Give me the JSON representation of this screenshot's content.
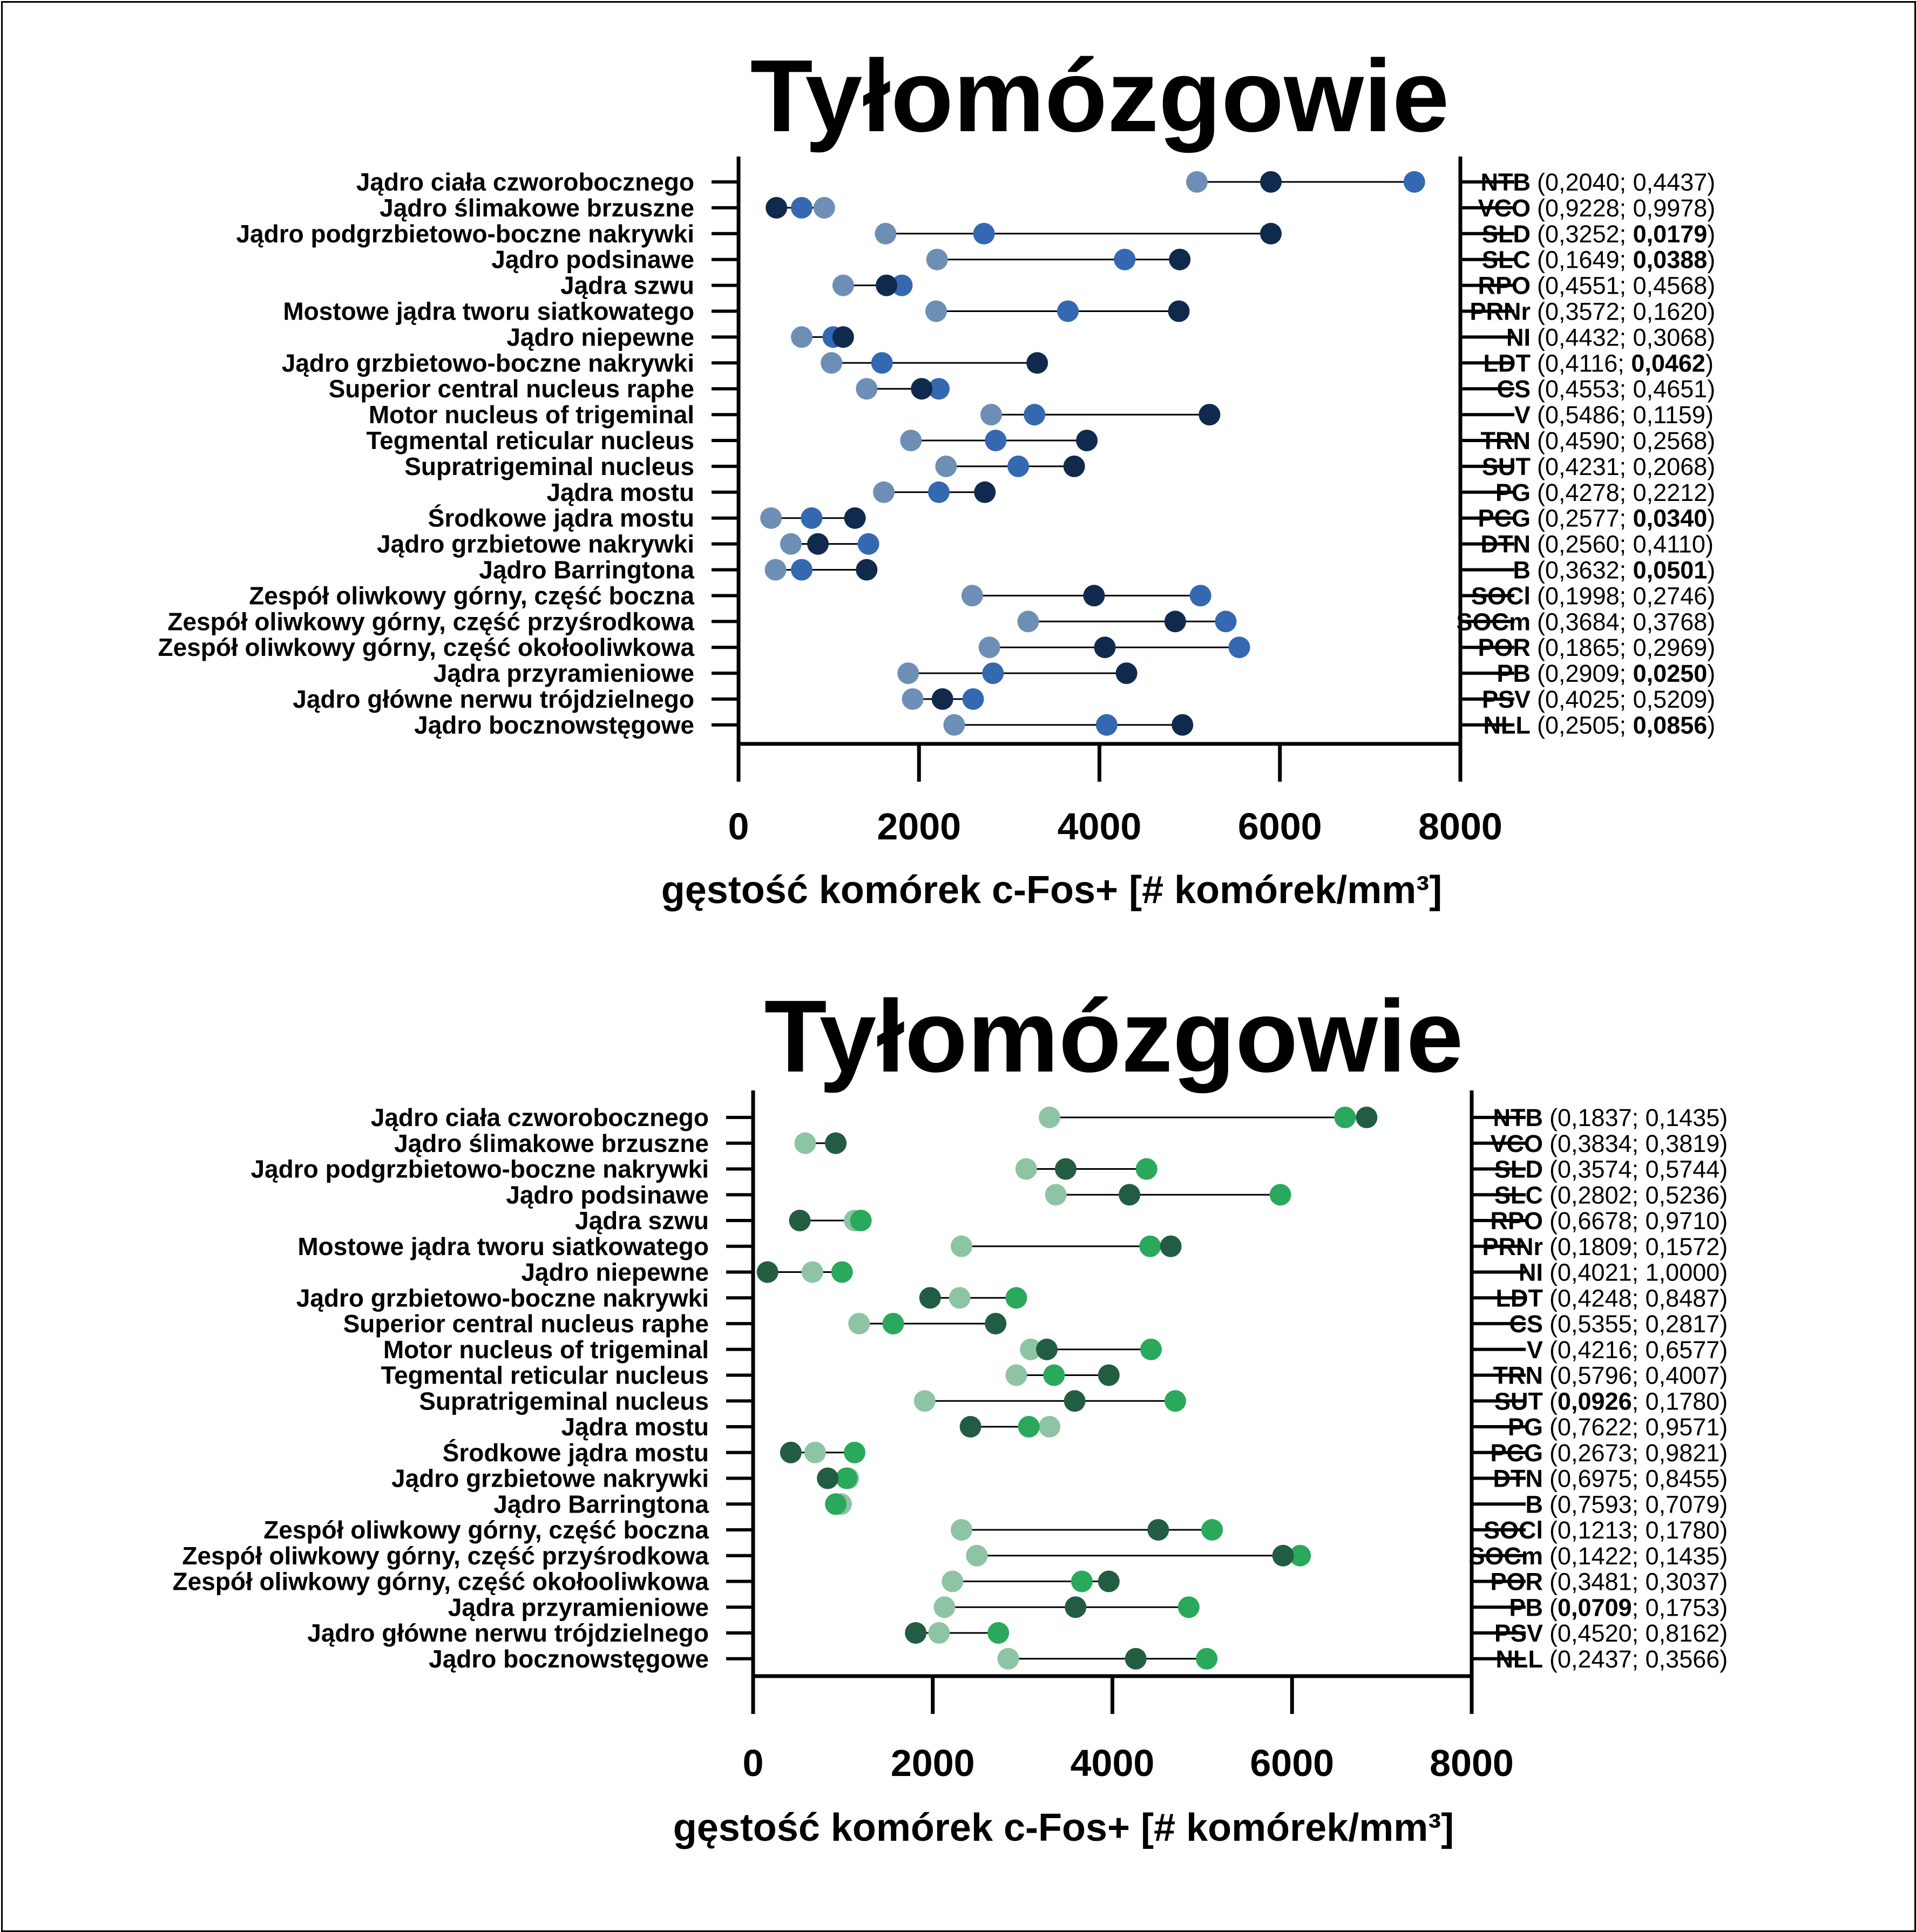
{
  "colors": {
    "blue_light": "#6e8fb5",
    "blue_mid": "#3468b1",
    "blue_dark": "#0f2a4d",
    "green_light": "#8dc4a4",
    "green_mid": "#2aa85c",
    "green_dark": "#225c43",
    "line": "#000000"
  },
  "chart_data": [
    {
      "type": "dot-range",
      "title": "Tyłomózgowie",
      "xlabel": "gęstość  komórek c-Fos+ [# komórek/mm³]",
      "xlim": [
        0,
        8000
      ],
      "xticks": [
        "0",
        "2000",
        "4000",
        "6000",
        "8000"
      ],
      "color_scheme": "blue",
      "categories": [
        "Jądro ciała czworobocznego",
        "Jądro ślimakowe brzuszne",
        "Jądro podgrzbietowo-boczne nakrywki",
        "Jądro podsinawe",
        "Jądra szwu",
        "Mostowe jądra tworu siatkowatego",
        "Jądro niepewne",
        "Jądro grzbietowo-boczne nakrywki",
        "Superior central nucleus raphe",
        "Motor nucleus of trigeminal",
        "Tegmental reticular nucleus",
        "Supratrigeminal nucleus",
        "Jądra mostu",
        "Środkowe jądra mostu",
        "Jądro grzbietowe nakrywki",
        "Jądro Barringtona",
        "Zespół oliwkowy górny, część boczna",
        "Zespół oliwkowy górny, część przyśrodkowa",
        "Zespół oliwkowy górny, część okołooliwkowa",
        "Jądra przyramieniowe",
        "Jądro główne nerwu trójdzielnego",
        "Jądro bocznowstęgowe"
      ],
      "abbreviations": [
        "NTB",
        "VCO",
        "SLD",
        "SLC",
        "RPO",
        "PRNr",
        "NI",
        "LDT",
        "CS",
        "V",
        "TRN",
        "SUT",
        "PG",
        "PCG",
        "DTN",
        "B",
        "SOCl",
        "SOCm",
        "POR",
        "PB",
        "PSV",
        "NLL"
      ],
      "p_values": [
        [
          "0,2040",
          "0,4437"
        ],
        [
          "0,9228",
          "0,9978"
        ],
        [
          "0,3252",
          "0,0179"
        ],
        [
          "0,1649",
          "0,0388"
        ],
        [
          "0,4551",
          "0,4568"
        ],
        [
          "0,3572",
          "0,1620"
        ],
        [
          "0,4432",
          "0,3068"
        ],
        [
          "0,4116",
          "0,0462"
        ],
        [
          "0,4553",
          "0,4651"
        ],
        [
          "0,5486",
          "0,1159"
        ],
        [
          "0,4590",
          "0,2568"
        ],
        [
          "0,4231",
          "0,2068"
        ],
        [
          "0,4278",
          "0,2212"
        ],
        [
          "0,2577",
          "0,0340"
        ],
        [
          "0,2560",
          "0,4110"
        ],
        [
          "0,3632",
          "0,0501"
        ],
        [
          "0,1998",
          "0,2746"
        ],
        [
          "0,3684",
          "0,3768"
        ],
        [
          "0,1865",
          "0,2969"
        ],
        [
          "0,2909",
          "0,0250"
        ],
        [
          "0,4025",
          "0,5209"
        ],
        [
          "0,2505",
          "0,0856"
        ]
      ],
      "p_bold": [
        [
          false,
          false
        ],
        [
          false,
          false
        ],
        [
          false,
          true
        ],
        [
          false,
          true
        ],
        [
          false,
          false
        ],
        [
          false,
          false
        ],
        [
          false,
          false
        ],
        [
          false,
          true
        ],
        [
          false,
          false
        ],
        [
          false,
          false
        ],
        [
          false,
          false
        ],
        [
          false,
          false
        ],
        [
          false,
          false
        ],
        [
          false,
          true
        ],
        [
          false,
          false
        ],
        [
          false,
          true
        ],
        [
          false,
          false
        ],
        [
          false,
          false
        ],
        [
          false,
          false
        ],
        [
          false,
          true
        ],
        [
          false,
          false
        ],
        [
          false,
          true
        ]
      ],
      "series": [
        {
          "shade": "light",
          "values": [
            5080,
            950,
            1630,
            2200,
            1160,
            2190,
            700,
            1030,
            1420,
            2800,
            1910,
            2300,
            1610,
            360,
            580,
            410,
            2590,
            3210,
            2780,
            1880,
            1930,
            2390
          ]
        },
        {
          "shade": "mid",
          "values": [
            7490,
            700,
            2720,
            4280,
            1810,
            3650,
            1050,
            1590,
            2220,
            3280,
            2850,
            3100,
            2220,
            810,
            1440,
            700,
            5120,
            5400,
            5550,
            2820,
            2600,
            4080
          ]
        },
        {
          "shade": "dark",
          "values": [
            5900,
            420,
            5900,
            4890,
            1640,
            4880,
            1160,
            3310,
            2030,
            5220,
            3860,
            3720,
            2730,
            1290,
            880,
            1420,
            3940,
            4840,
            4060,
            4300,
            2260,
            4920
          ]
        }
      ]
    },
    {
      "type": "dot-range",
      "title": "Tyłomózgowie",
      "xlabel": "gęstość  komórek c-Fos+ [# komórek/mm³]",
      "xlim": [
        0,
        8000
      ],
      "xticks": [
        "0",
        "2000",
        "4000",
        "6000",
        "8000"
      ],
      "color_scheme": "green",
      "categories": [
        "Jądro ciała czworobocznego",
        "Jądro ślimakowe brzuszne",
        "Jądro podgrzbietowo-boczne nakrywki",
        "Jądro podsinawe",
        "Jądra szwu",
        "Mostowe jądra tworu siatkowatego",
        "Jądro niepewne",
        "Jądro grzbietowo-boczne nakrywki",
        "Superior central nucleus raphe",
        "Motor nucleus of trigeminal",
        "Tegmental reticular nucleus",
        "Supratrigeminal nucleus",
        "Jądra mostu",
        "Środkowe jądra mostu",
        "Jądro grzbietowe nakrywki",
        "Jądro Barringtona",
        "Zespół oliwkowy górny, część boczna",
        "Zespół oliwkowy górny, część przyśrodkowa",
        "Zespół oliwkowy górny, część okołooliwkowa",
        "Jądra przyramieniowe",
        "Jądro główne nerwu trójdzielnego",
        "Jądro bocznowstęgowe"
      ],
      "abbreviations": [
        "NTB",
        "VCO",
        "SLD",
        "SLC",
        "RPO",
        "PRNr",
        "NI",
        "LDT",
        "CS",
        "V",
        "TRN",
        "SUT",
        "PG",
        "PCG",
        "DTN",
        "B",
        "SOCl",
        "SOCm",
        "POR",
        "PB",
        "PSV",
        "NLL"
      ],
      "p_values": [
        [
          "0,1837",
          "0,1435"
        ],
        [
          "0,3834",
          "0,3819"
        ],
        [
          "0,3574",
          "0,5744"
        ],
        [
          "0,2802",
          "0,5236"
        ],
        [
          "0,6678",
          "0,9710"
        ],
        [
          "0,1809",
          "0,1572"
        ],
        [
          "0,4021",
          "1,0000"
        ],
        [
          "0,4248",
          "0,8487"
        ],
        [
          "0,5355",
          "0,2817"
        ],
        [
          "0,4216",
          "0,6577"
        ],
        [
          "0,5796",
          "0,4007"
        ],
        [
          "0,0926",
          "0,1780"
        ],
        [
          "0,7622",
          "0,9571"
        ],
        [
          "0,2673",
          "0,9821"
        ],
        [
          "0,6975",
          "0,8455"
        ],
        [
          "0,7593",
          "0,7079"
        ],
        [
          "0,1213",
          "0,1780"
        ],
        [
          "0,1422",
          "0,1435"
        ],
        [
          "0,3481",
          "0,3037"
        ],
        [
          "0,0709",
          "0,1753"
        ],
        [
          "0,4520",
          "0,8162"
        ],
        [
          "0,2437",
          "0,3566"
        ]
      ],
      "p_bold": [
        [
          false,
          false
        ],
        [
          false,
          false
        ],
        [
          false,
          false
        ],
        [
          false,
          false
        ],
        [
          false,
          false
        ],
        [
          false,
          false
        ],
        [
          false,
          false
        ],
        [
          false,
          false
        ],
        [
          false,
          false
        ],
        [
          false,
          false
        ],
        [
          false,
          false
        ],
        [
          true,
          false
        ],
        [
          false,
          false
        ],
        [
          false,
          false
        ],
        [
          false,
          false
        ],
        [
          false,
          false
        ],
        [
          false,
          false
        ],
        [
          false,
          false
        ],
        [
          false,
          false
        ],
        [
          true,
          false
        ],
        [
          false,
          false
        ],
        [
          false,
          false
        ]
      ],
      "series": [
        {
          "shade": "light",
          "values": [
            3300,
            580,
            3040,
            3370,
            1130,
            2320,
            660,
            2300,
            1180,
            3090,
            2930,
            1910,
            3300,
            690,
            1060,
            980,
            2320,
            2490,
            2220,
            2130,
            2070,
            2840
          ]
        },
        {
          "shade": "mid",
          "values": [
            6590,
            920,
            4380,
            5870,
            1200,
            4420,
            990,
            2930,
            1560,
            4430,
            3350,
            4700,
            3070,
            1130,
            1040,
            920,
            5110,
            6090,
            3660,
            4850,
            2730,
            5050
          ]
        },
        {
          "shade": "dark",
          "values": [
            6830,
            920,
            3480,
            4190,
            520,
            4650,
            160,
            1970,
            2700,
            3270,
            3960,
            3580,
            2420,
            420,
            830,
            null,
            4510,
            5900,
            3960,
            3590,
            1810,
            4260
          ]
        }
      ]
    }
  ]
}
